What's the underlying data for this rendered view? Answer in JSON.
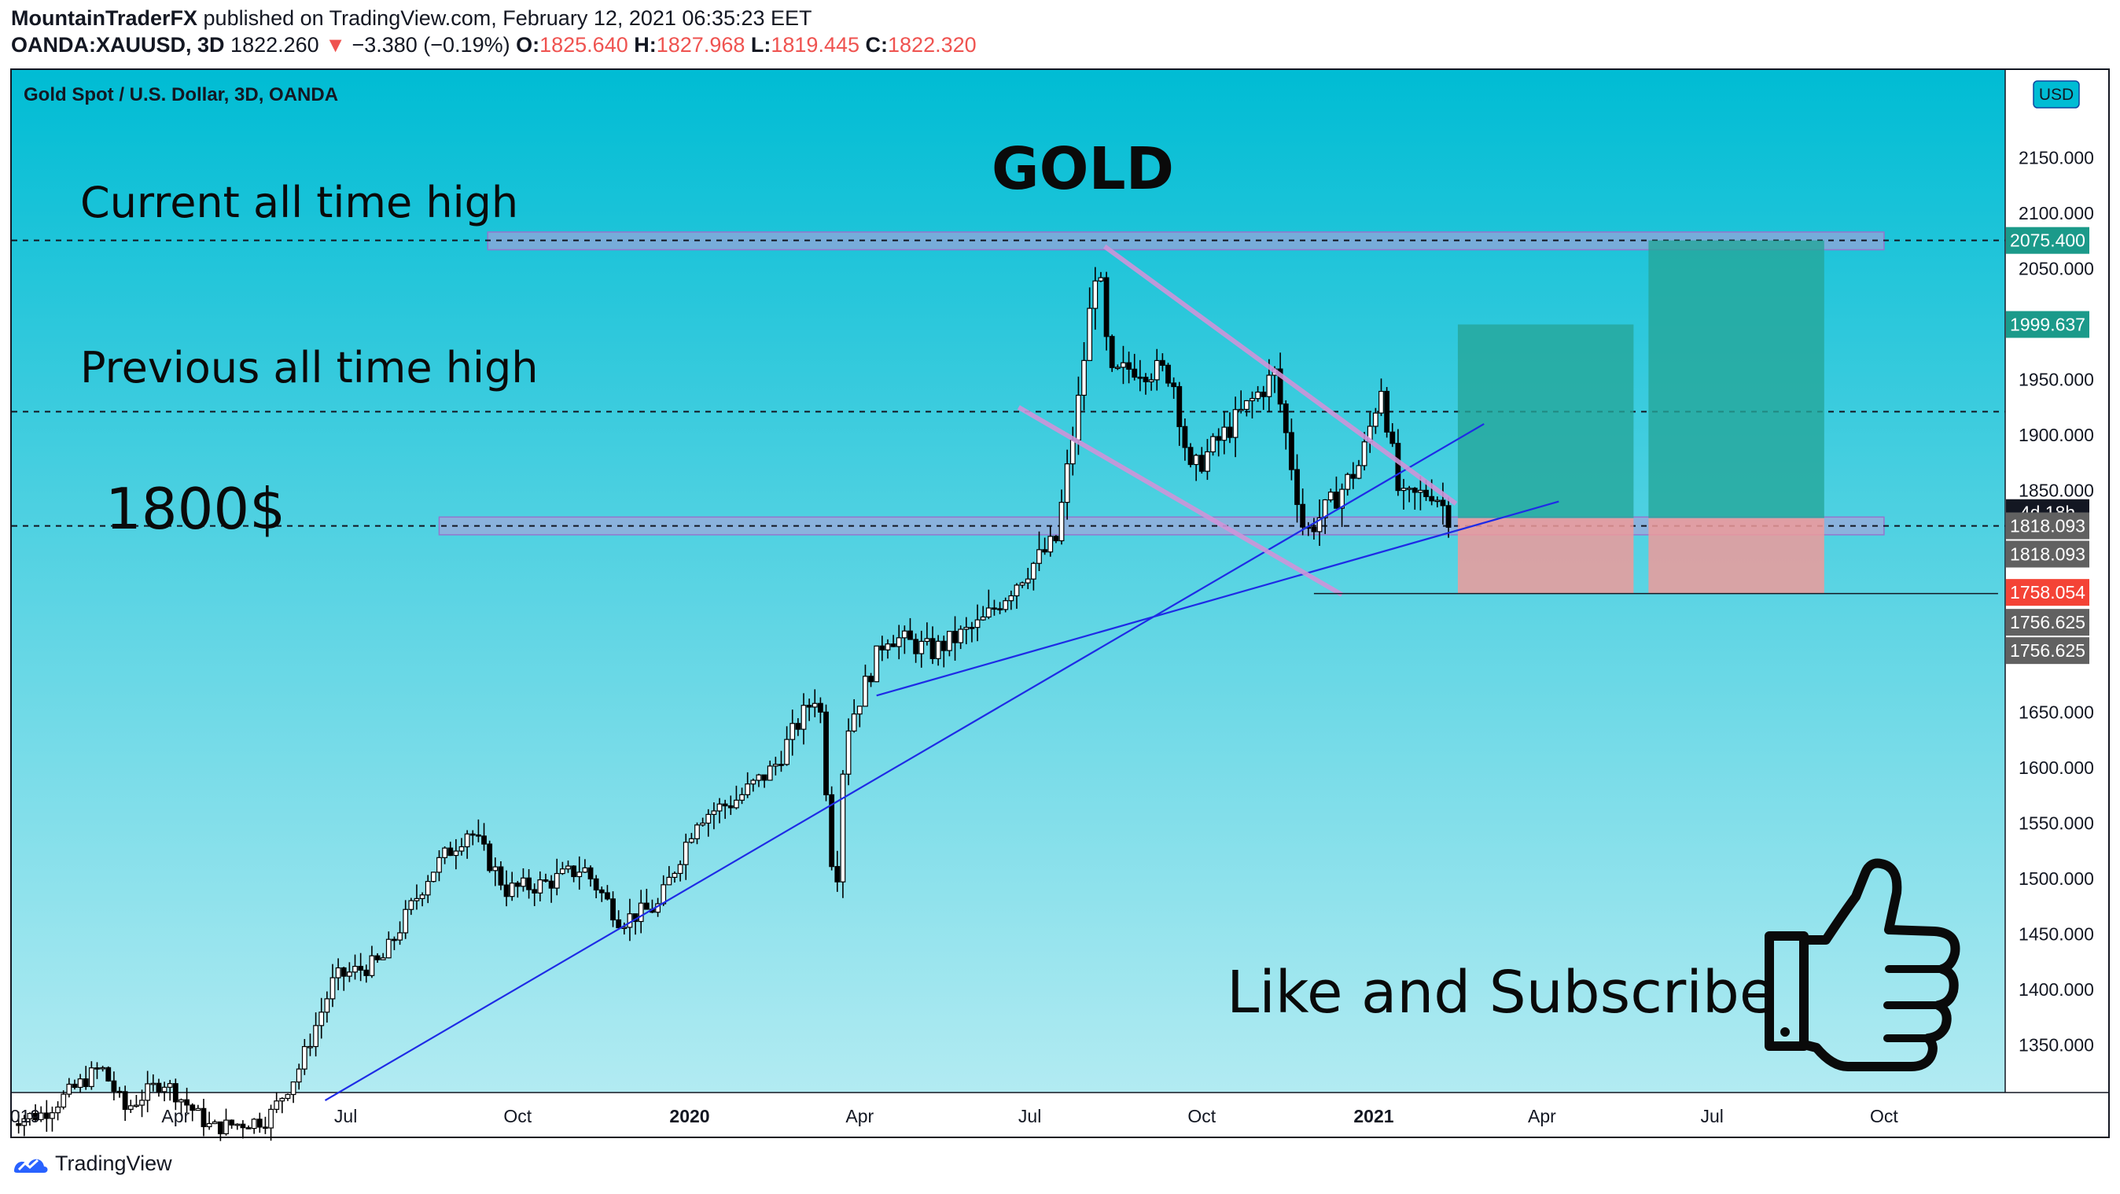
{
  "header": {
    "author": "MountainTraderFX",
    "published": "published on TradingView.com, February 12, 2021 06:35:23 EET",
    "symbol": "OANDA:XAUUSD, 3D",
    "last": "1822.260",
    "change": "−3.380 (−0.19%)",
    "o_label": "O:",
    "o": "1825.640",
    "h_label": "H:",
    "h": "1827.968",
    "l_label": "L:",
    "l": "1819.445",
    "c_label": "C:",
    "c": "1822.320"
  },
  "footer": {
    "brand": "TradingView"
  },
  "colors": {
    "bg_top": "#00bcd4",
    "bg_bottom": "#b2ebf2",
    "zone": "#b39ddb",
    "target": "#26a69a",
    "stop": "#ef9a9a",
    "trendline": "#1e2be6",
    "channel": "#ce93d8",
    "red_label": "#f44336",
    "grey_label": "#616161",
    "teal_label": "#1b9a8a"
  },
  "chart_data": {
    "type": "candlestick",
    "title": "Gold Spot / U.S. Dollar, 3D, OANDA",
    "currency_badge": "USD",
    "ylim": [
      1300,
      2225
    ],
    "xlim": [
      "2019-01-01",
      "2021-12-01"
    ],
    "y_ticks": [
      "2150.000",
      "2100.000",
      "2050.000",
      "1950.000",
      "1900.000",
      "1850.000",
      "1650.000",
      "1600.000",
      "1550.000",
      "1500.000",
      "1450.000",
      "1400.000",
      "1350.000"
    ],
    "x_ticks": [
      {
        "label": "019",
        "date": "2019-01-01",
        "bold": false
      },
      {
        "label": "Apr",
        "date": "2019-04-01",
        "bold": false
      },
      {
        "label": "Jul",
        "date": "2019-07-01",
        "bold": false
      },
      {
        "label": "Oct",
        "date": "2019-10-01",
        "bold": false
      },
      {
        "label": "2020",
        "date": "2020-01-01",
        "bold": true
      },
      {
        "label": "Apr",
        "date": "2020-04-01",
        "bold": false
      },
      {
        "label": "Jul",
        "date": "2020-07-01",
        "bold": false
      },
      {
        "label": "Oct",
        "date": "2020-10-01",
        "bold": false
      },
      {
        "label": "2021",
        "date": "2021-01-01",
        "bold": true
      },
      {
        "label": "Apr",
        "date": "2021-04-01",
        "bold": false
      },
      {
        "label": "Jul",
        "date": "2021-07-01",
        "bold": false
      },
      {
        "label": "Oct",
        "date": "2021-10-01",
        "bold": false
      }
    ],
    "price_labels": [
      {
        "text": "2075.400",
        "value": 2075.4,
        "style": "teal"
      },
      {
        "text": "1999.637",
        "value": 1999.637,
        "style": "teal"
      },
      {
        "text": "4d 18h",
        "value": 1830,
        "style": "dark"
      },
      {
        "text": "1818.093",
        "value": 1818.093,
        "style": "grey"
      },
      {
        "text": "1818.093",
        "value": 1818.093,
        "style": "grey",
        "offset": 1
      },
      {
        "text": "1758.054",
        "value": 1758.054,
        "style": "red"
      },
      {
        "text": "1756.625",
        "value": 1756.625,
        "style": "grey",
        "offset": 1
      },
      {
        "text": "1756.625",
        "value": 1756.625,
        "style": "grey",
        "offset": 2
      }
    ],
    "annotations": {
      "main_title": "GOLD",
      "current_ath": "Current all time high",
      "previous_ath": "Previous all time high",
      "level_1800": "1800$",
      "cta": "Like and Subscribe"
    },
    "hlines": [
      2075.4,
      1921,
      1818
    ],
    "zones": [
      {
        "name": "ath-zone",
        "x0": "2019-09-15",
        "x1": "2021-10-01",
        "y0": 2067,
        "y1": 2083
      },
      {
        "name": "support-zone",
        "x0": "2019-08-20",
        "x1": "2021-10-01",
        "y0": 1810,
        "y1": 1826
      }
    ],
    "positions": [
      {
        "x0": "2021-02-15",
        "x1": "2021-05-20",
        "entry": 1825,
        "target": 1999.637,
        "stop": 1756.625
      },
      {
        "x0": "2021-05-28",
        "x1": "2021-08-30",
        "entry": 1825,
        "target": 2075.4,
        "stop": 1756.625
      }
    ],
    "trendlines": [
      {
        "name": "long-trendline",
        "kind": "trend",
        "x0": "2019-06-20",
        "y0": 1300,
        "x1": "2021-03-01",
        "y1": 1910
      },
      {
        "name": "short-trendline",
        "kind": "trend",
        "x0": "2020-04-10",
        "y0": 1665,
        "x1": "2021-04-10",
        "y1": 1840
      },
      {
        "name": "channel-upper",
        "kind": "channel",
        "x0": "2020-08-10",
        "y0": 2070,
        "x1": "2021-02-14",
        "y1": 1838
      },
      {
        "name": "channel-lower",
        "kind": "channel",
        "x0": "2020-06-25",
        "y0": 1925,
        "x1": "2020-12-15",
        "y1": 1756
      },
      {
        "name": "stop-line",
        "kind": "plain",
        "x0": "2020-11-30",
        "y0": 1757,
        "x1": "2021-12-01",
        "y1": 1757
      }
    ],
    "ohlc_anchors": [
      [
        "2019-01-01",
        1282
      ],
      [
        "2019-01-20",
        1288
      ],
      [
        "2019-02-20",
        1330
      ],
      [
        "2019-03-05",
        1292
      ],
      [
        "2019-03-25",
        1318
      ],
      [
        "2019-04-20",
        1275
      ],
      [
        "2019-05-20",
        1283
      ],
      [
        "2019-06-05",
        1325
      ],
      [
        "2019-06-25",
        1410
      ],
      [
        "2019-07-20",
        1425
      ],
      [
        "2019-08-15",
        1505
      ],
      [
        "2019-09-05",
        1545
      ],
      [
        "2019-09-25",
        1490
      ],
      [
        "2019-10-15",
        1495
      ],
      [
        "2019-11-05",
        1510
      ],
      [
        "2019-11-25",
        1462
      ],
      [
        "2019-12-15",
        1475
      ],
      [
        "2020-01-05",
        1555
      ],
      [
        "2020-01-25",
        1570
      ],
      [
        "2020-02-15",
        1600
      ],
      [
        "2020-02-28",
        1640
      ],
      [
        "2020-03-10",
        1670
      ],
      [
        "2020-03-19",
        1475
      ],
      [
        "2020-03-24",
        1630
      ],
      [
        "2020-04-15",
        1720
      ],
      [
        "2020-05-10",
        1705
      ],
      [
        "2020-06-05",
        1730
      ],
      [
        "2020-06-25",
        1770
      ],
      [
        "2020-07-15",
        1805
      ],
      [
        "2020-07-27",
        1930
      ],
      [
        "2020-08-06",
        2062
      ],
      [
        "2020-08-13",
        1950
      ],
      [
        "2020-08-25",
        1962
      ],
      [
        "2020-09-15",
        1955
      ],
      [
        "2020-09-25",
        1865
      ],
      [
        "2020-10-15",
        1905
      ],
      [
        "2020-11-09",
        1955
      ],
      [
        "2020-11-25",
        1810
      ],
      [
        "2020-12-10",
        1840
      ],
      [
        "2020-12-25",
        1875
      ],
      [
        "2021-01-05",
        1945
      ],
      [
        "2021-01-15",
        1840
      ],
      [
        "2021-02-02",
        1850
      ],
      [
        "2021-02-12",
        1822
      ]
    ]
  }
}
